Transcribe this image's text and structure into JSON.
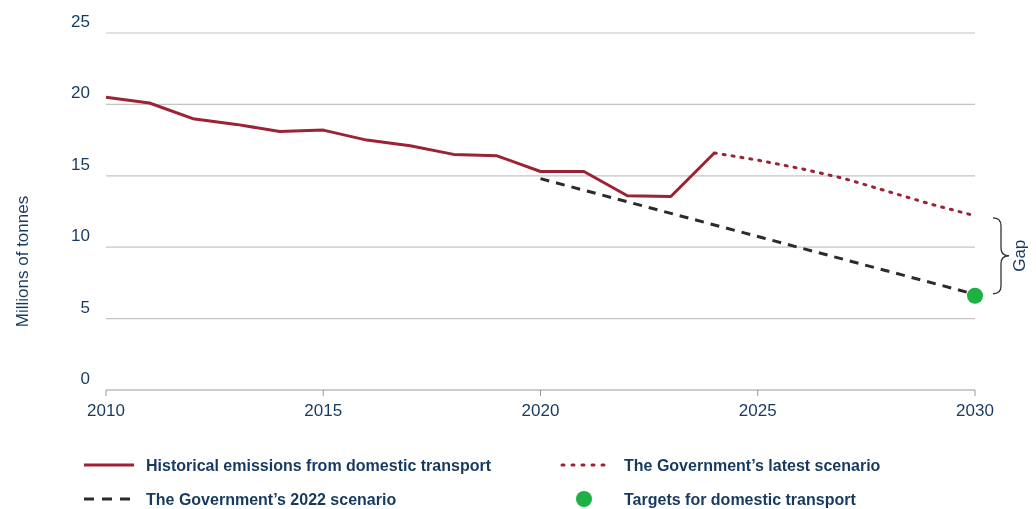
{
  "chart_data": {
    "type": "line",
    "ylabel": "Millions of tonnes",
    "xlim": [
      2010,
      2030
    ],
    "xticks": [
      2010,
      2015,
      2020,
      2025,
      2030
    ],
    "ylim": [
      0,
      25
    ],
    "yticks": [
      0,
      5,
      10,
      15,
      20,
      25
    ],
    "grid": "y",
    "legend": "bottom",
    "series": [
      {
        "name": "Historical emissions from domestic transport",
        "color": "#9b2335",
        "line_style": "solid",
        "marker": "none",
        "x": [
          2010,
          2011,
          2012,
          2013,
          2014,
          2015,
          2016,
          2017,
          2018,
          2019,
          2020,
          2021,
          2022,
          2023,
          2024
        ],
        "values": [
          20.5,
          20.1,
          19.0,
          18.6,
          18.1,
          18.2,
          17.5,
          17.1,
          16.5,
          16.4,
          15.3,
          15.3,
          13.6,
          13.55,
          16.6
        ]
      },
      {
        "name": "The Government’s latest scenario",
        "color": "#9b2335",
        "line_style": "dotted",
        "marker": "none",
        "x": [
          2024,
          2025,
          2026,
          2027,
          2028,
          2029,
          2030
        ],
        "values": [
          16.6,
          16.1,
          15.5,
          14.8,
          13.9,
          13.0,
          12.2
        ]
      },
      {
        "name": "The Government’s 2022 scenario",
        "color": "#2b2b2b",
        "line_style": "dashed",
        "marker": "none",
        "x": [
          2020,
          2030
        ],
        "values": [
          14.8,
          6.7
        ]
      },
      {
        "name": "Targets for domestic transport",
        "type": "scatter",
        "color": "#1db045",
        "marker": "circle",
        "x": [
          2030
        ],
        "values": [
          6.6
        ]
      }
    ],
    "annotations": [
      "Gap"
    ]
  }
}
